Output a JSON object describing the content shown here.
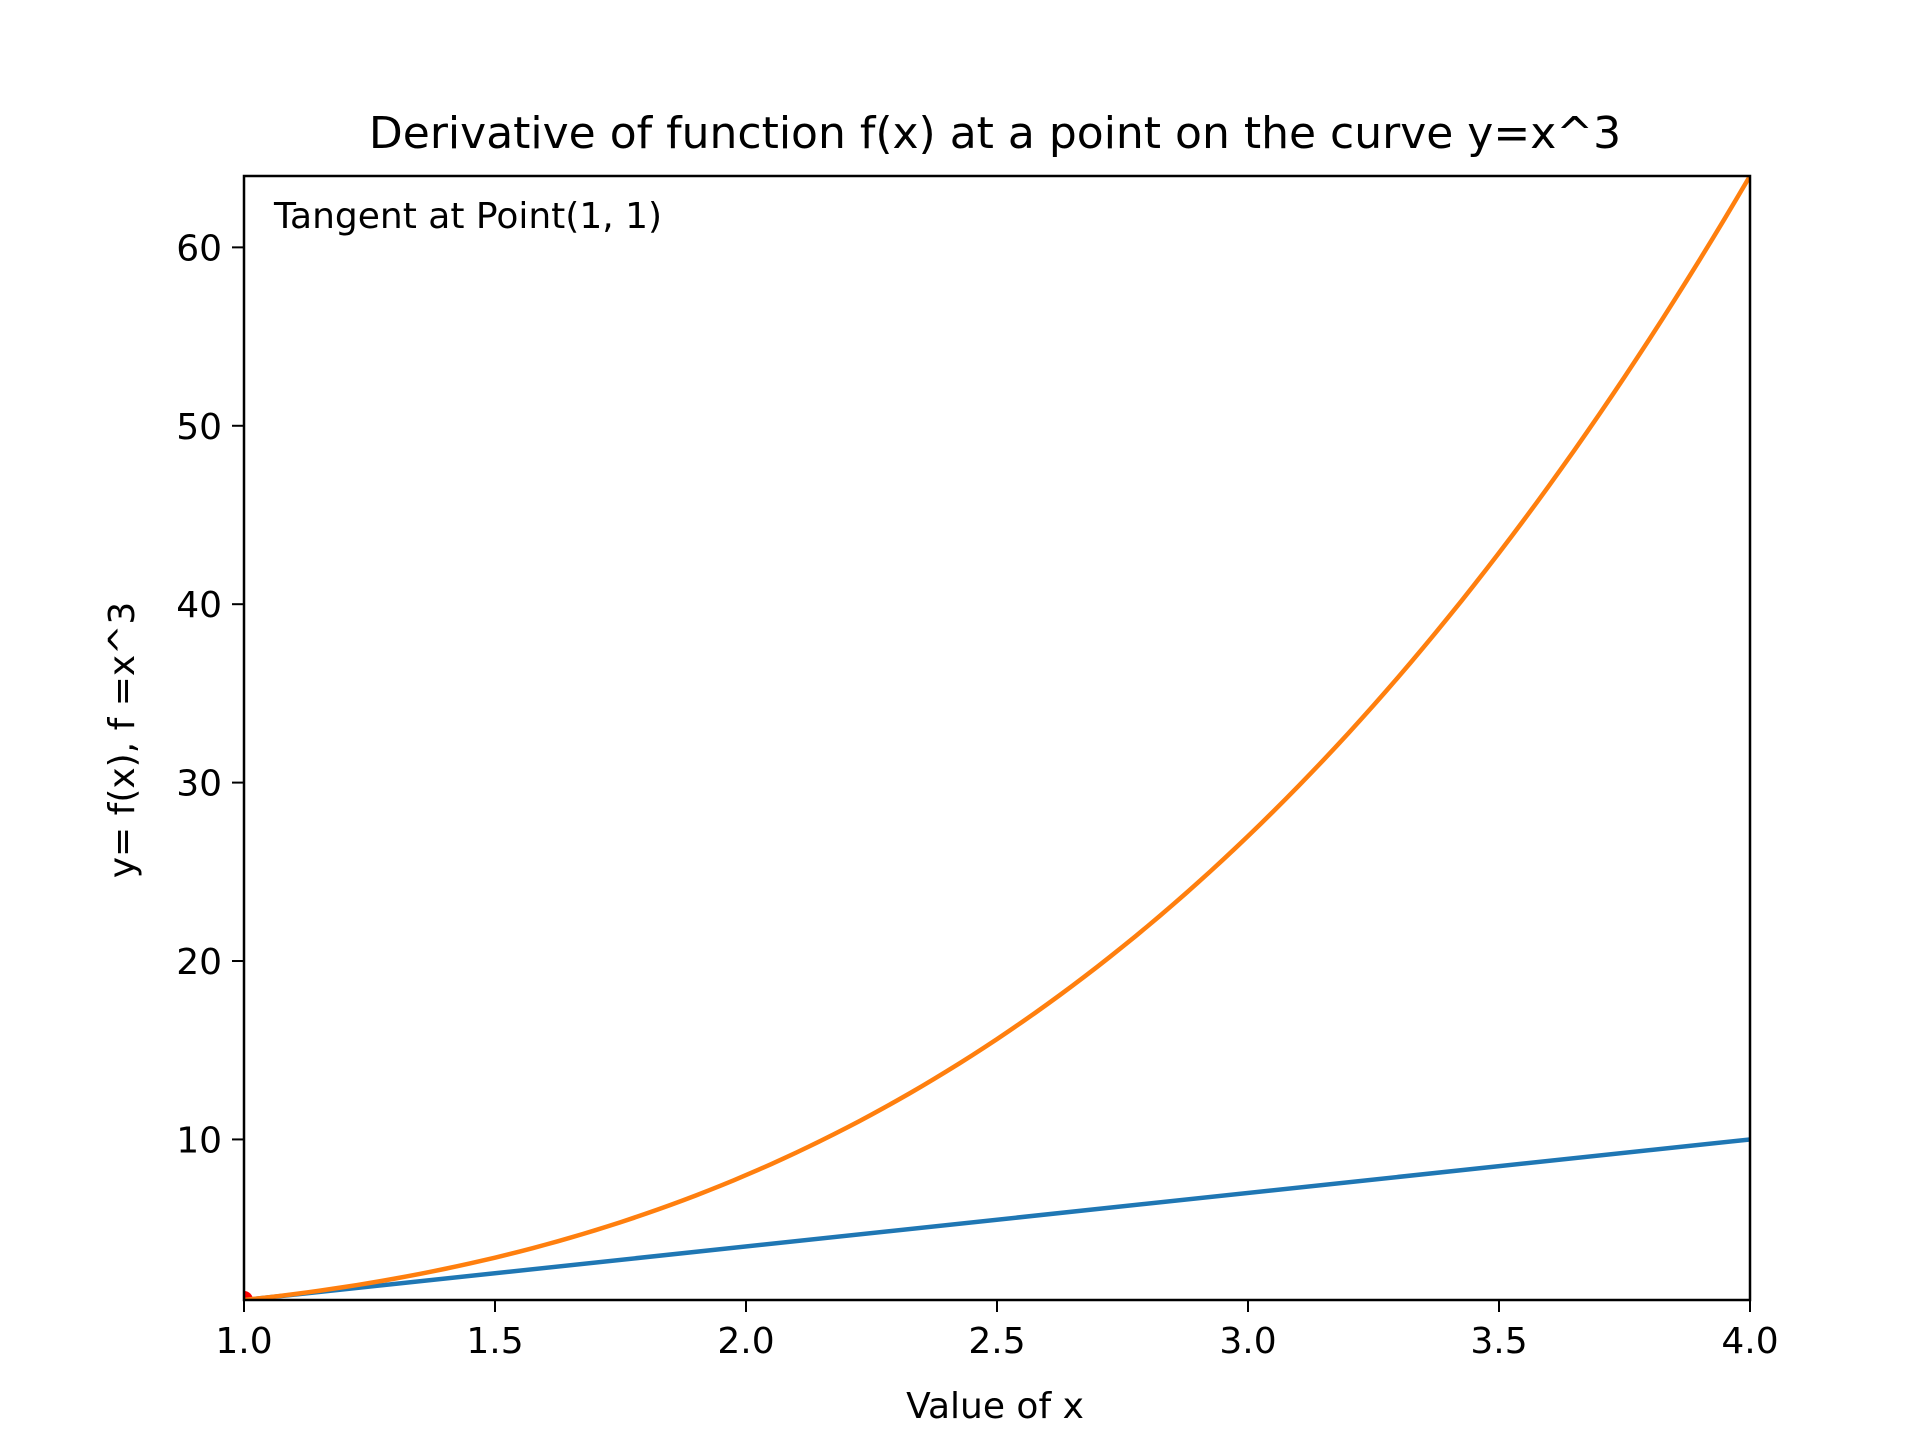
{
  "chart_data": {
    "type": "line",
    "title": "Derivative of function f(x) at a point on the curve y=x^3",
    "xlabel": "Value of x",
    "ylabel": "y= f(x), f =x^3",
    "xlim": [
      1.0,
      4.0
    ],
    "ylim": [
      1,
      64
    ],
    "x_ticks": [
      "1.0",
      "1.5",
      "2.0",
      "2.5",
      "3.0",
      "3.5",
      "4.0"
    ],
    "y_ticks": [
      "10",
      "20",
      "30",
      "40",
      "50",
      "60"
    ],
    "x_tick_values": [
      1.0,
      1.5,
      2.0,
      2.5,
      3.0,
      3.5,
      4.0
    ],
    "y_tick_values": [
      10,
      20,
      30,
      40,
      50,
      60
    ],
    "annotation": "Tangent at Point(1, 1)",
    "grid": false,
    "series": [
      {
        "color": "#1f77b4",
        "x": [
          1.0,
          4.0
        ],
        "y": [
          1,
          10
        ]
      },
      {
        "color": "#ff7f0e",
        "x": [
          1.0,
          1.25,
          1.5,
          1.75,
          2.0,
          2.25,
          2.5,
          2.75,
          3.0,
          3.25,
          3.5,
          3.75,
          4.0
        ],
        "y": [
          1,
          1.95,
          3.38,
          5.36,
          8,
          11.39,
          15.63,
          20.8,
          27,
          34.33,
          42.88,
          52.73,
          64
        ]
      }
    ],
    "point": {
      "x": 1,
      "y": 1,
      "color": "#ff0000"
    }
  }
}
